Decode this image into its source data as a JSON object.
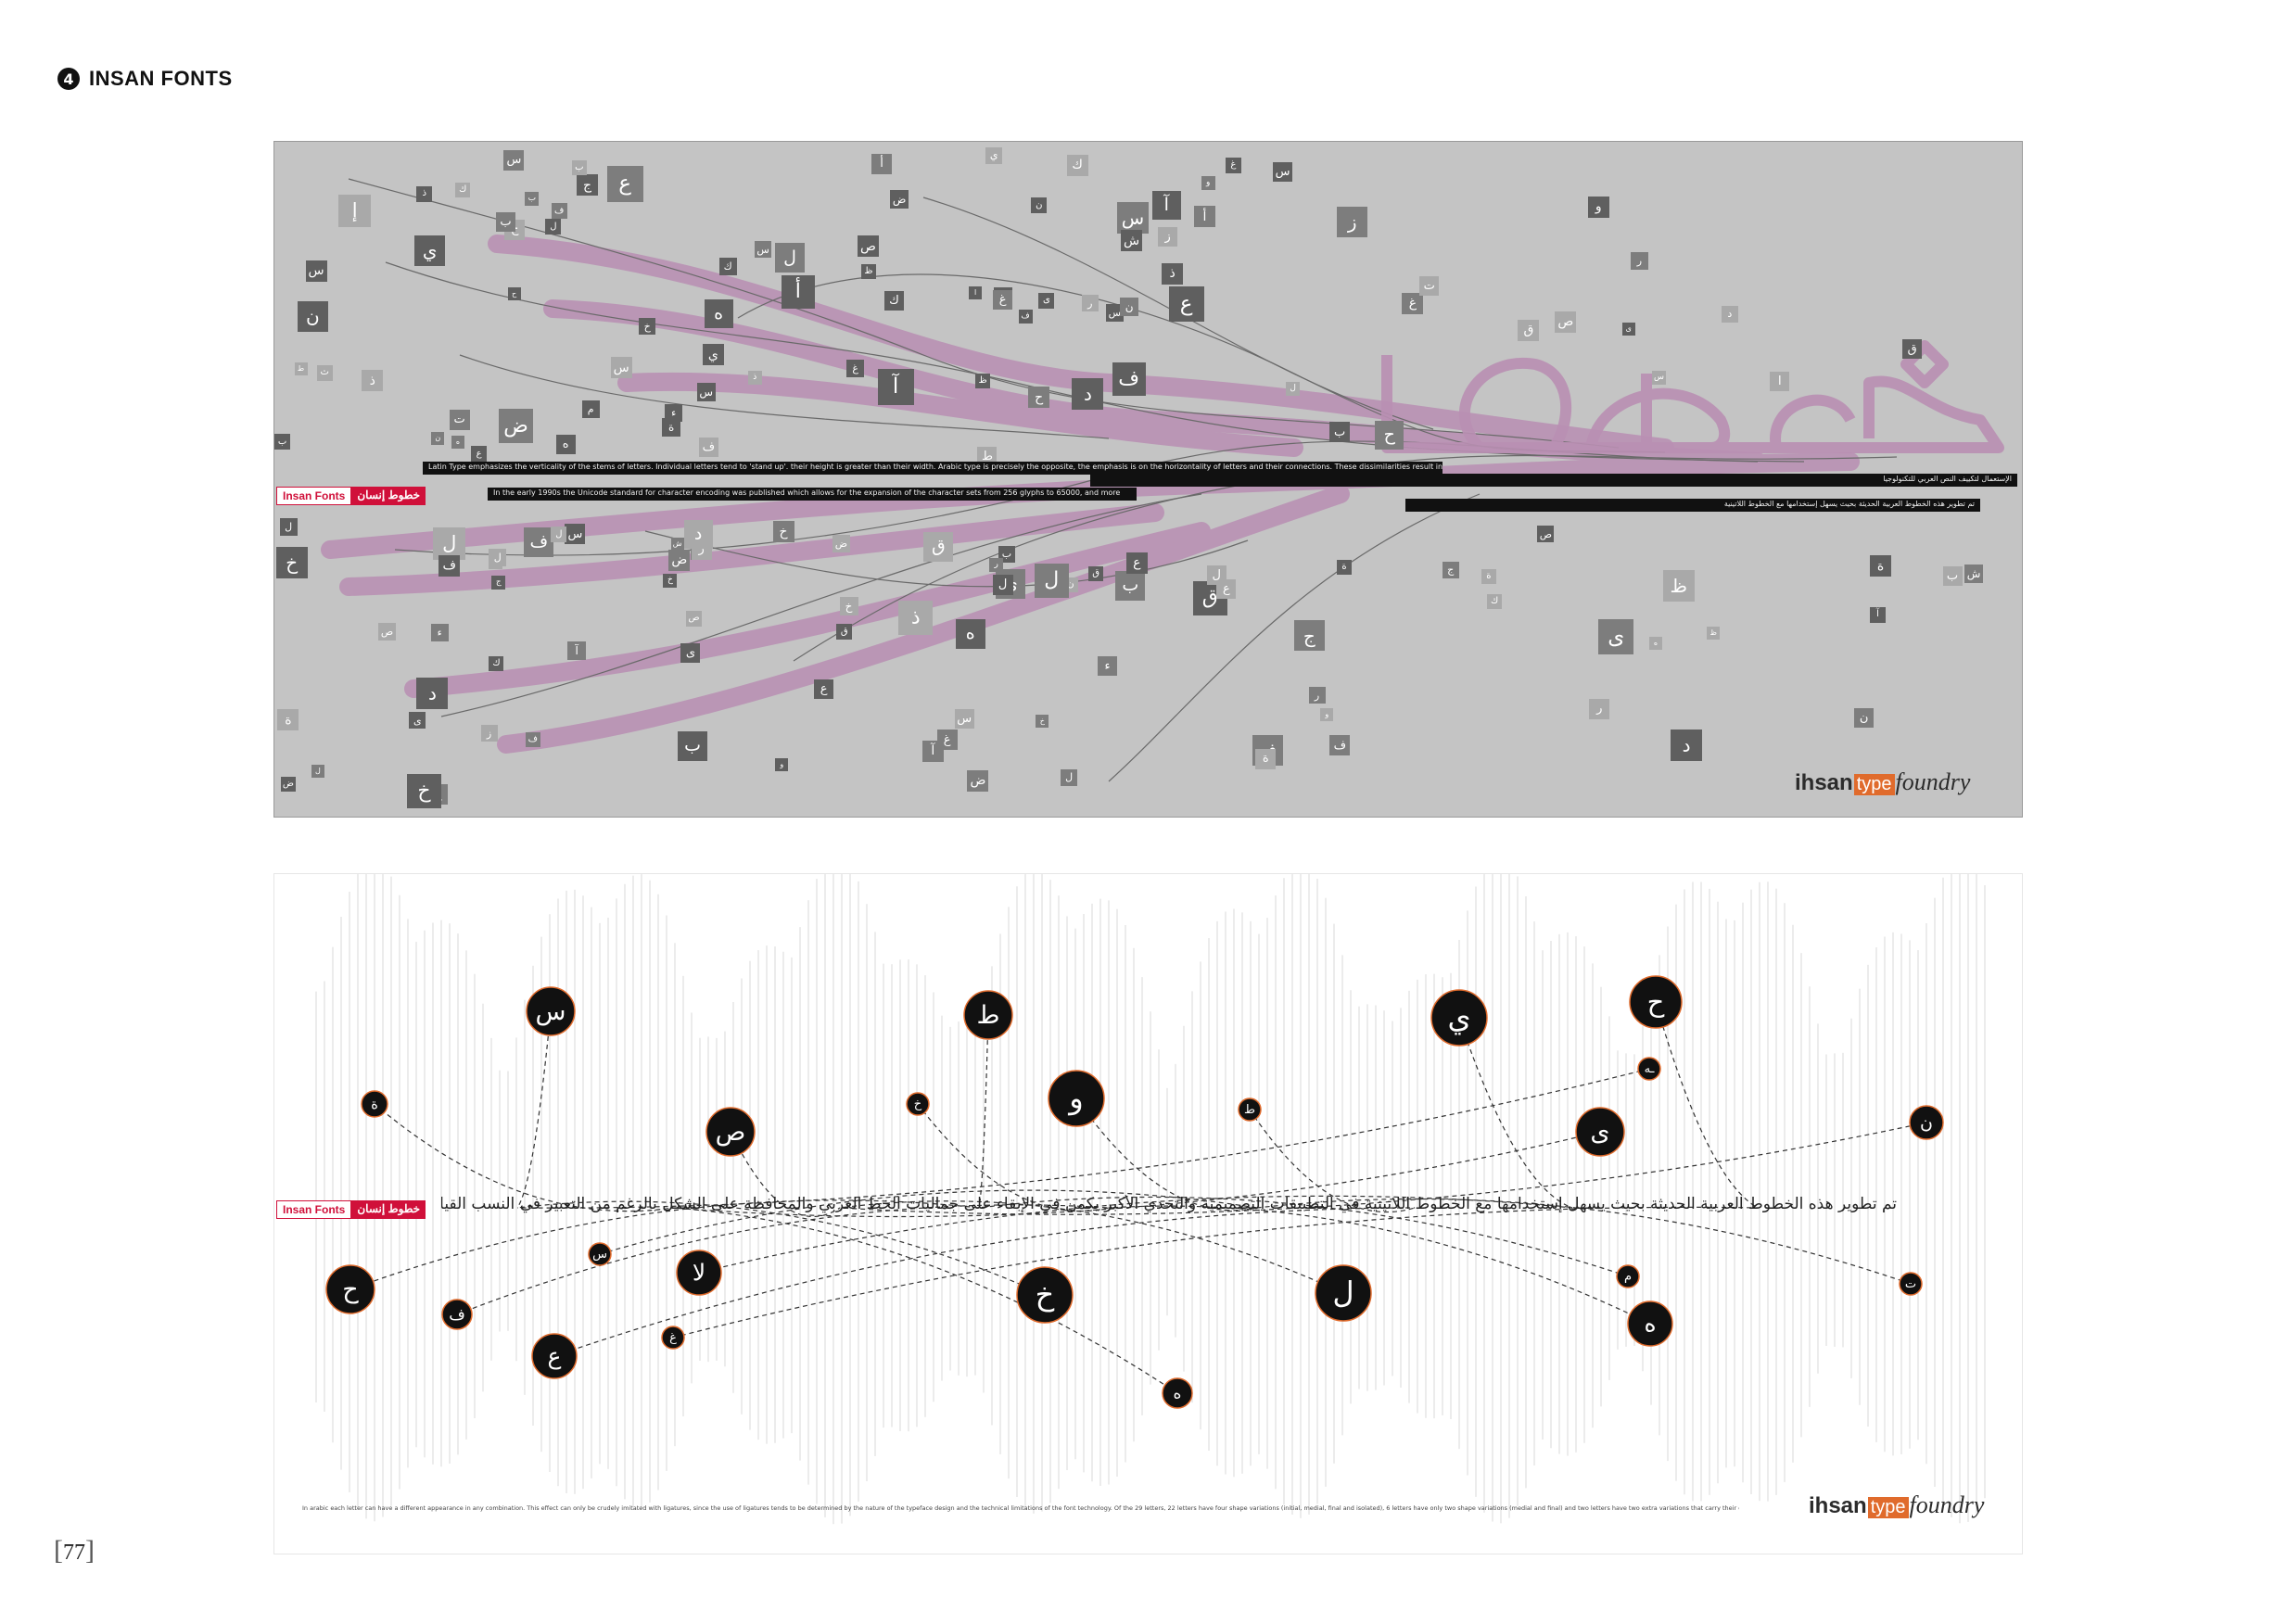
{
  "header": {
    "number": "4",
    "title": "INSAN FONTS"
  },
  "top_panel": {
    "label_latin": "Insan Fonts",
    "label_arabic": "خطوط إنسان",
    "band_texts": [
      "Latin Type emphasizes the verticality of the stems of letters. Individual letters tend to 'stand up'. their height is greater than their width. Arabic type is precisely the opposite, the emphasis is on the horizontality of letters and their connections. These dissimilarities result in diverse landscapes, but the principles for creating ordered harmony are generally the same.",
      "In the early 1990s the Unicode standard for character encoding was published which allows for the expansion of the character sets from 256 glyphs to 65000, and more",
      "الإستعمال لتكييف النص العربي للتكنولوجيا",
      "تم تطوير هذه الخطوط العربية الحديثة بحيث يسهل إستخدامها مع الخطوط اللاتينية"
    ],
    "big_word": "خطوط",
    "logo": {
      "part1": "ihsan",
      "part2": "type",
      "part3": "foundry"
    }
  },
  "bottom_panel": {
    "label_latin": "Insan Fonts",
    "label_arabic": "خطوط إنسان",
    "arabic_line": "تم تطوير هذه الخطوط العربية الحديثة بحيث يسهل إستخدامها مع الخطوط اللاتينية في التطبيقات التصميمية والتحدي الأكبر يكمن في الإبقاء على جماليات الخط العربي والمحافظة على الشكل بالرغم من التعبير في النسب القياسية الأصلية للحروف و تتميز هذه الخطوط بسهولة قرائتها حتى في النصوص الصغيرة",
    "caption": "In arabic each letter can have a different appearance in any combination. This effect can only be crudely imitated with ligatures, since the use of ligatures tends to be determined by the nature of the typeface design and the technical limitations of the font technology. Of the 29 letters, 22 letters have four shape variations (initial, medial, final and isolated), 6 letters have only two shape variations (medial and final) and two letters have two extra variations that carry their own name and come in only final and free standing shape variations.",
    "letters": [
      "س",
      "ة",
      "ص",
      "ط",
      "خ",
      "و",
      "ط",
      "ي",
      "ح",
      "ـه",
      "ى",
      "ن",
      "ح",
      "ف",
      "س",
      "ع",
      "لا",
      "غ",
      "خ",
      "ه",
      "ل",
      "م",
      "ه",
      "ت"
    ],
    "logo": {
      "part1": "ihsan",
      "part2": "type",
      "part3": "foundry"
    }
  },
  "page_number": "77",
  "colors": {
    "accent_red": "#d0103a",
    "logo_orange": "#e06b2c",
    "pink_stroke": "#b98fb3",
    "panel_gray": "#c4c4c4"
  }
}
